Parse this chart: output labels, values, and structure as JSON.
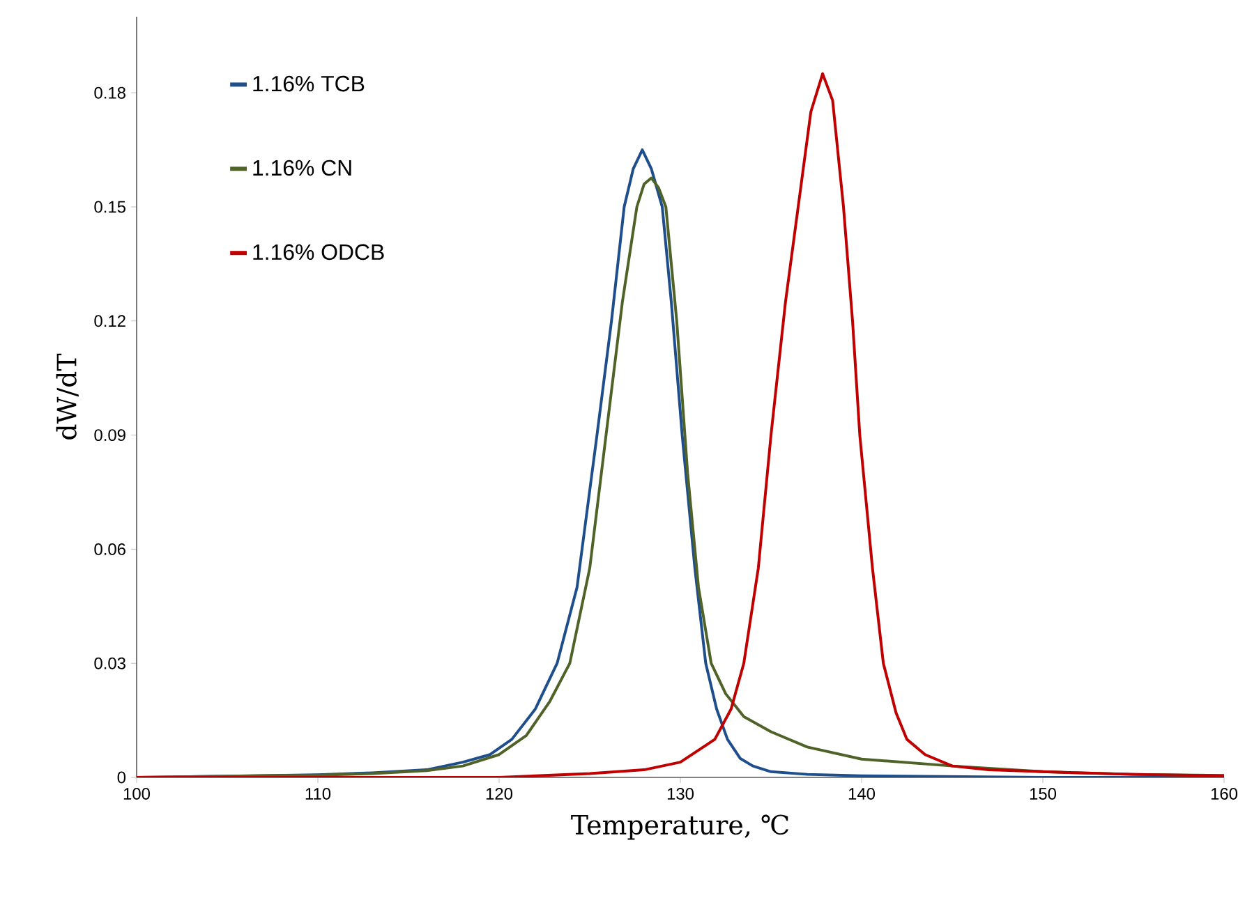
{
  "chart_data": {
    "type": "line",
    "xlabel": "Temperature, ℃",
    "ylabel": "dW/dT",
    "xlim": [
      100,
      160
    ],
    "ylim": [
      0,
      0.2
    ],
    "xticks": [
      100,
      110,
      120,
      130,
      140,
      150,
      160
    ],
    "yticks": [
      0,
      0.03,
      0.06,
      0.09,
      0.12,
      0.15,
      0.18
    ],
    "legend": "top left",
    "grid": false,
    "marker": "none",
    "line_style": "solid",
    "series": [
      {
        "name": "1.16% TCB",
        "color": "#1f4e8c",
        "x": [
          100,
          105,
          110,
          113,
          116,
          118,
          119.5,
          120.7,
          122,
          123.2,
          124.3,
          125.4,
          126.2,
          126.9,
          127.4,
          127.9,
          128.4,
          129,
          129.5,
          130.1,
          130.8,
          131.4,
          132,
          132.6,
          133.3,
          134,
          135,
          137,
          140,
          145,
          150,
          155,
          160
        ],
        "values": [
          0,
          0.0003,
          0.0007,
          0.0012,
          0.002,
          0.004,
          0.006,
          0.01,
          0.018,
          0.03,
          0.05,
          0.09,
          0.12,
          0.15,
          0.16,
          0.165,
          0.16,
          0.15,
          0.125,
          0.09,
          0.055,
          0.03,
          0.018,
          0.01,
          0.005,
          0.003,
          0.0015,
          0.0008,
          0.0004,
          0.0002,
          0,
          0,
          0
        ]
      },
      {
        "name": "1.16% CN",
        "color": "#4f6228",
        "x": [
          100,
          105,
          110,
          113,
          116,
          118,
          120,
          121.5,
          122.8,
          123.9,
          125,
          125.9,
          126.8,
          127.6,
          128,
          128.4,
          128.8,
          129.2,
          129.8,
          130.4,
          131,
          131.7,
          132.5,
          133.5,
          135,
          137,
          140,
          145,
          150,
          155,
          160
        ],
        "values": [
          0,
          0.0003,
          0.0006,
          0.001,
          0.0018,
          0.003,
          0.006,
          0.011,
          0.02,
          0.03,
          0.055,
          0.09,
          0.125,
          0.15,
          0.156,
          0.1576,
          0.155,
          0.15,
          0.12,
          0.08,
          0.05,
          0.03,
          0.022,
          0.016,
          0.012,
          0.008,
          0.0048,
          0.003,
          0.0015,
          0.0008,
          0.0005
        ]
      },
      {
        "name": "1.16% ODCB",
        "color": "#c00000",
        "x": [
          100,
          110,
          120,
          125,
          128,
          130,
          131.9,
          132.8,
          133.5,
          134.3,
          135,
          135.8,
          136.5,
          137.2,
          137.85,
          138.4,
          139,
          139.5,
          139.9,
          140.6,
          141.2,
          141.9,
          142.5,
          143.5,
          145,
          147,
          150,
          155,
          160
        ],
        "values": [
          0,
          0,
          0,
          0.001,
          0.002,
          0.004,
          0.01,
          0.018,
          0.03,
          0.055,
          0.09,
          0.125,
          0.15,
          0.175,
          0.185,
          0.178,
          0.15,
          0.12,
          0.09,
          0.055,
          0.03,
          0.017,
          0.01,
          0.006,
          0.003,
          0.002,
          0.0015,
          0.0008,
          0.0004
        ]
      }
    ]
  }
}
